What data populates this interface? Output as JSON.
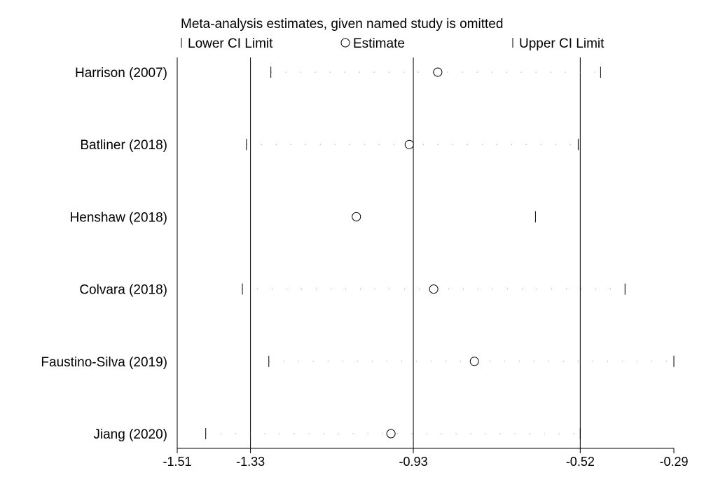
{
  "chart_data": {
    "type": "scatter",
    "title": "Meta-analysis estimates, given named study is omitted",
    "legend": {
      "position": "top",
      "entries": [
        {
          "label": "Lower CI Limit",
          "marker": "tick"
        },
        {
          "label": "Estimate",
          "marker": "circle"
        },
        {
          "label": "Upper CI Limit",
          "marker": "tick"
        }
      ]
    },
    "x_ticks": [
      "-1.51",
      "-1.33",
      "-0.93",
      "-0.52",
      "-0.29"
    ],
    "x_tick_values": [
      -1.51,
      -1.33,
      -0.93,
      -0.52,
      -0.29
    ],
    "xlim": [
      -1.51,
      -0.29
    ],
    "reference_lines": [
      -1.33,
      -0.93,
      -0.52
    ],
    "studies": [
      {
        "name": "Harrison (2007)",
        "lower": -1.28,
        "estimate": -0.87,
        "upper": -0.47
      },
      {
        "name": "Batliner (2018)",
        "lower": -1.34,
        "estimate": -0.94,
        "upper": -0.525
      },
      {
        "name": "Henshaw (2018)",
        "lower": null,
        "estimate": -1.07,
        "upper": -0.63
      },
      {
        "name": "Colvara (2018)",
        "lower": -1.35,
        "estimate": -0.88,
        "upper": -0.41
      },
      {
        "name": "Faustino-Silva (2019)",
        "lower": -1.285,
        "estimate": -0.78,
        "upper": -0.29
      },
      {
        "name": "Jiang (2020)",
        "lower": -1.44,
        "estimate": -0.985,
        "upper": -0.52
      }
    ]
  }
}
